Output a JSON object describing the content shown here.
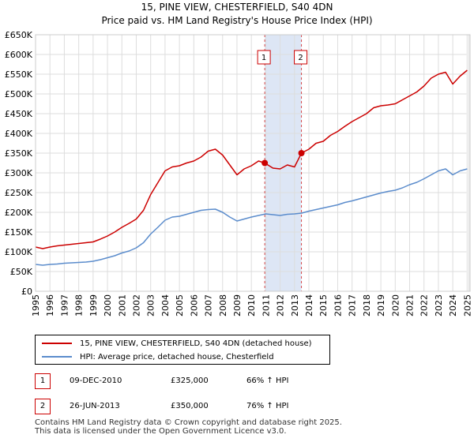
{
  "title": "15, PINE VIEW, CHESTERFIELD, S40 4DN",
  "subtitle": "Price paid vs. HM Land Registry's House Price Index (HPI)",
  "chart_data": {
    "type": "line",
    "title": "15, PINE VIEW, CHESTERFIELD, S40 4DN",
    "subtitle": "Price paid vs. HM Land Registry's House Price Index (HPI)",
    "xlabel": "",
    "ylabel": "",
    "xlim": [
      1995,
      2025.2
    ],
    "ylim": [
      0,
      650000
    ],
    "grid": true,
    "xticks": [
      "1995",
      "1996",
      "1997",
      "1998",
      "1999",
      "2000",
      "2001",
      "2002",
      "2003",
      "2004",
      "2005",
      "2006",
      "2007",
      "2008",
      "2009",
      "2010",
      "2011",
      "2012",
      "2013",
      "2014",
      "2015",
      "2016",
      "2017",
      "2018",
      "2019",
      "2020",
      "2021",
      "2022",
      "2023",
      "2024",
      "2025"
    ],
    "yticks": [
      {
        "value": 0,
        "label": "£0"
      },
      {
        "value": 50000,
        "label": "£50K"
      },
      {
        "value": 100000,
        "label": "£100K"
      },
      {
        "value": 150000,
        "label": "£150K"
      },
      {
        "value": 200000,
        "label": "£200K"
      },
      {
        "value": 250000,
        "label": "£250K"
      },
      {
        "value": 300000,
        "label": "£300K"
      },
      {
        "value": 350000,
        "label": "£350K"
      },
      {
        "value": 400000,
        "label": "£400K"
      },
      {
        "value": 450000,
        "label": "£450K"
      },
      {
        "value": 500000,
        "label": "£500K"
      },
      {
        "value": 550000,
        "label": "£550K"
      },
      {
        "value": 600000,
        "label": "£600K"
      },
      {
        "value": 650000,
        "label": "£650K"
      }
    ],
    "shaded_span": {
      "x0": 2010.93,
      "x1": 2013.48,
      "color": "#dde6f5"
    },
    "series": [
      {
        "name": "15, PINE VIEW, CHESTERFIELD, S40 4DN (detached house)",
        "color": "#cc0000",
        "x": [
          1995.0,
          1995.5,
          1996.0,
          1996.5,
          1997.0,
          1997.5,
          1998.0,
          1998.5,
          1999.0,
          1999.5,
          2000.0,
          2000.5,
          2001.0,
          2001.5,
          2002.0,
          2002.5,
          2003.0,
          2003.5,
          2004.0,
          2004.5,
          2005.0,
          2005.5,
          2006.0,
          2006.5,
          2007.0,
          2007.5,
          2008.0,
          2008.5,
          2009.0,
          2009.5,
          2010.0,
          2010.5,
          2010.93,
          2011.5,
          2012.0,
          2012.5,
          2013.0,
          2013.48,
          2014.0,
          2014.5,
          2015.0,
          2015.5,
          2016.0,
          2016.5,
          2017.0,
          2017.5,
          2018.0,
          2018.5,
          2019.0,
          2019.5,
          2020.0,
          2020.5,
          2021.0,
          2021.5,
          2022.0,
          2022.5,
          2023.0,
          2023.5,
          2024.0,
          2024.5,
          2025.0
        ],
        "y": [
          112000,
          108000,
          112000,
          115000,
          117000,
          119000,
          121000,
          123000,
          125000,
          132000,
          140000,
          150000,
          162000,
          172000,
          183000,
          205000,
          245000,
          275000,
          305000,
          315000,
          318000,
          325000,
          330000,
          340000,
          355000,
          360000,
          345000,
          320000,
          295000,
          310000,
          318000,
          330000,
          325000,
          312000,
          310000,
          320000,
          315000,
          350000,
          360000,
          375000,
          380000,
          395000,
          405000,
          418000,
          430000,
          440000,
          450000,
          465000,
          470000,
          472000,
          475000,
          485000,
          495000,
          505000,
          520000,
          540000,
          550000,
          555000,
          525000,
          545000,
          560000
        ]
      },
      {
        "name": "HPI: Average price, detached house, Chesterfield",
        "color": "#5b8ccc",
        "x": [
          1995.0,
          1995.5,
          1996.0,
          1996.5,
          1997.0,
          1997.5,
          1998.0,
          1998.5,
          1999.0,
          1999.5,
          2000.0,
          2000.5,
          2001.0,
          2001.5,
          2002.0,
          2002.5,
          2003.0,
          2003.5,
          2004.0,
          2004.5,
          2005.0,
          2005.5,
          2006.0,
          2006.5,
          2007.0,
          2007.5,
          2008.0,
          2008.5,
          2009.0,
          2009.5,
          2010.0,
          2010.5,
          2011.0,
          2011.5,
          2012.0,
          2012.5,
          2013.0,
          2013.5,
          2014.0,
          2014.5,
          2015.0,
          2015.5,
          2016.0,
          2016.5,
          2017.0,
          2017.5,
          2018.0,
          2018.5,
          2019.0,
          2019.5,
          2020.0,
          2020.5,
          2021.0,
          2021.5,
          2022.0,
          2022.5,
          2023.0,
          2023.5,
          2024.0,
          2024.5,
          2025.0
        ],
        "y": [
          68000,
          66000,
          68000,
          69000,
          71000,
          72000,
          73000,
          74000,
          76000,
          80000,
          85000,
          90000,
          97000,
          102000,
          110000,
          123000,
          145000,
          162000,
          180000,
          188000,
          190000,
          195000,
          200000,
          205000,
          207000,
          208000,
          200000,
          188000,
          178000,
          183000,
          188000,
          192000,
          196000,
          194000,
          192000,
          195000,
          196000,
          198000,
          203000,
          207000,
          211000,
          215000,
          219000,
          225000,
          229000,
          234000,
          239000,
          244000,
          249000,
          253000,
          256000,
          262000,
          270000,
          276000,
          285000,
          295000,
          305000,
          310000,
          295000,
          305000,
          310000
        ]
      }
    ],
    "transactions": [
      {
        "marker": "1",
        "x": 2010.93,
        "y": 325000,
        "date": "09-DEC-2010",
        "price": "£325,000",
        "hpi": "66% ↑ HPI"
      },
      {
        "marker": "2",
        "x": 2013.48,
        "y": 350000,
        "date": "26-JUN-2013",
        "price": "£350,000",
        "hpi": "76% ↑ HPI"
      }
    ]
  },
  "legend": {
    "items": [
      {
        "label": "15, PINE VIEW, CHESTERFIELD, S40 4DN (detached house)",
        "color": "#cc0000"
      },
      {
        "label": "HPI: Average price, detached house, Chesterfield",
        "color": "#5b8ccc"
      }
    ]
  },
  "footer": {
    "line1": "Contains HM Land Registry data © Crown copyright and database right 2025.",
    "line2": "This data is licensed under the Open Government Licence v3.0."
  }
}
